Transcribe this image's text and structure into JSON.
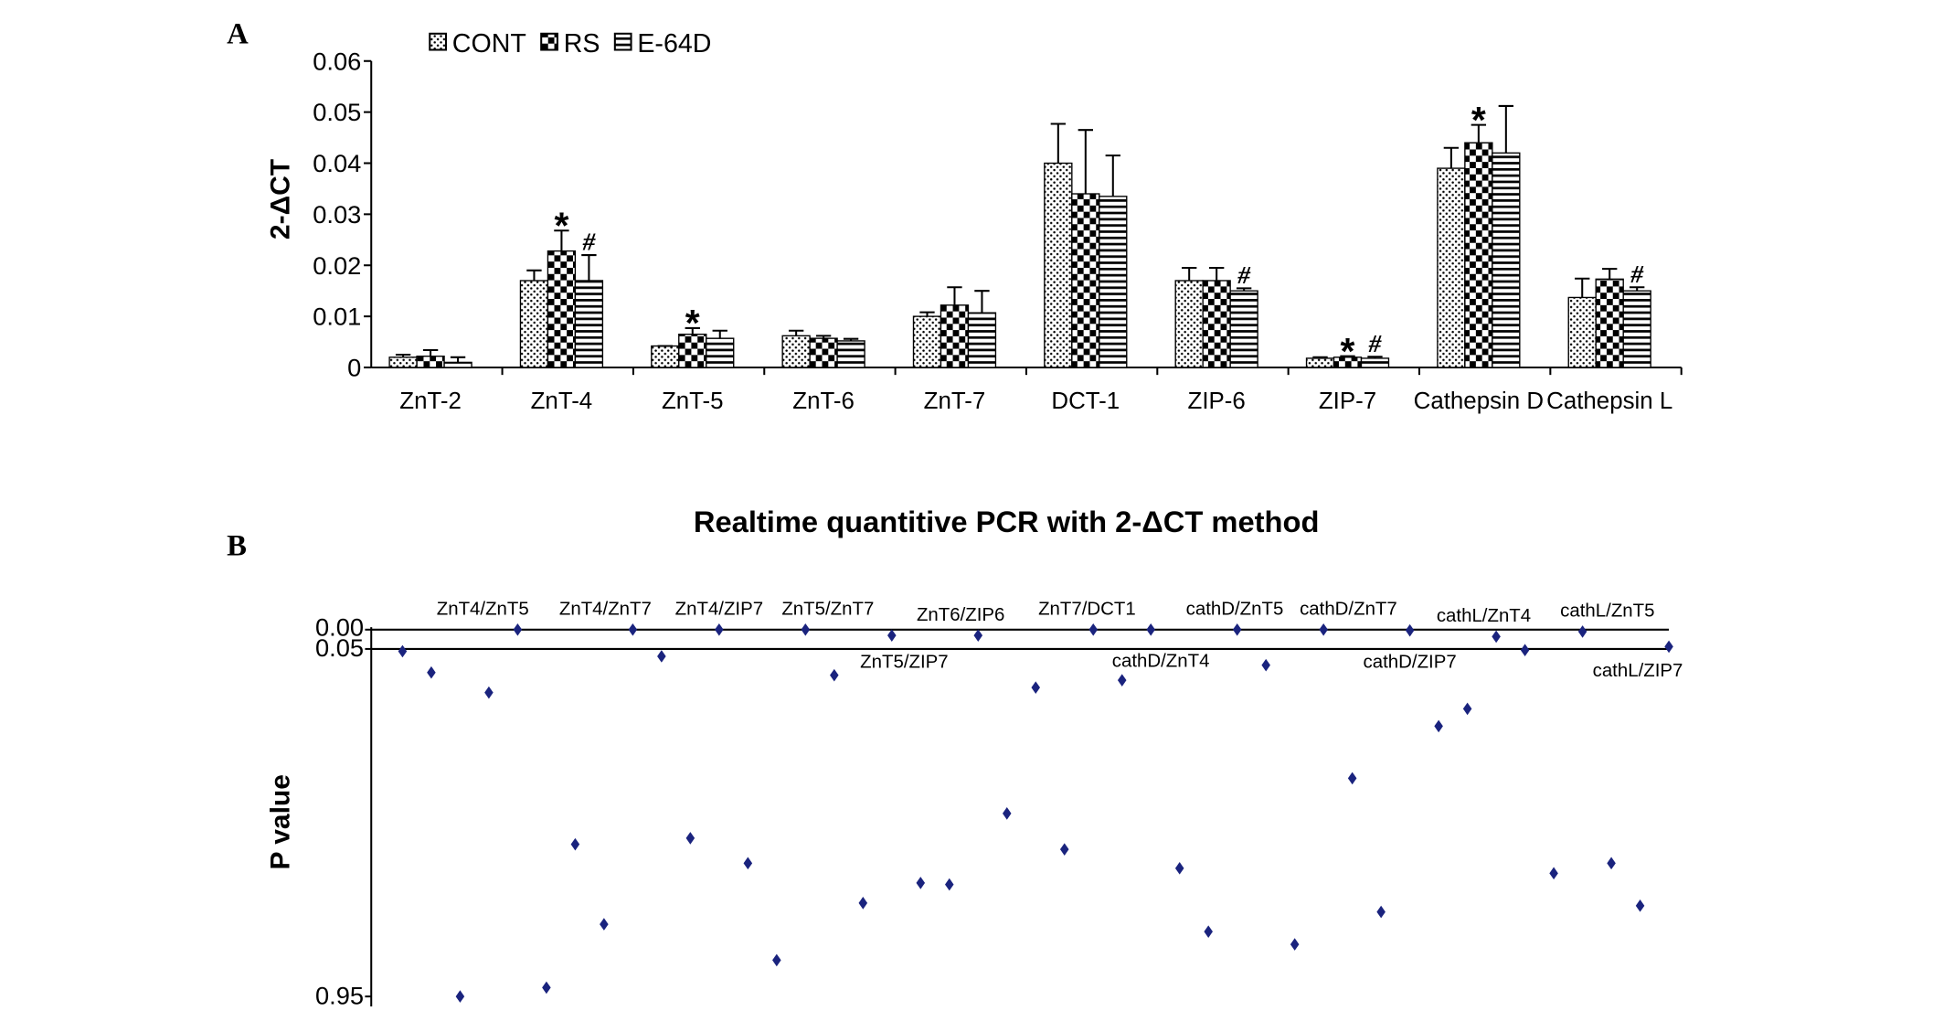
{
  "chart_data": [
    {
      "type": "bar",
      "panel": "A",
      "ylabel": "2-ΔCT",
      "categories": [
        "ZnT-2",
        "ZnT-4",
        "ZnT-5",
        "ZnT-6",
        "ZnT-7",
        "DCT-1",
        "ZIP-6",
        "ZIP-7",
        "Cathepsin D",
        "Cathepsin L"
      ],
      "series": [
        {
          "name": "CONT",
          "pattern": "dots",
          "color": "#000000",
          "values": [
            0.002,
            0.017,
            0.0042,
            0.0062,
            0.01,
            0.04,
            0.017,
            0.0018,
            0.039,
            0.0137
          ],
          "errors": [
            0.0005,
            0.002,
            0,
            0.001,
            0.0008,
            0.0077,
            0.0025,
            0.0002,
            0.004,
            0.0037
          ]
        },
        {
          "name": "RS",
          "pattern": "checker",
          "color": "#000000",
          "values": [
            0.0022,
            0.0228,
            0.0065,
            0.0057,
            0.0122,
            0.034,
            0.017,
            0.002,
            0.044,
            0.0173
          ],
          "errors": [
            0.0012,
            0.004,
            0.0012,
            0.0005,
            0.0035,
            0.0125,
            0.0025,
            0.0002,
            0.0035,
            0.002
          ]
        },
        {
          "name": "E-64D",
          "pattern": "stripes",
          "color": "#000000",
          "values": [
            0.001,
            0.017,
            0.0057,
            0.0052,
            0.0107,
            0.0335,
            0.015,
            0.0018,
            0.042,
            0.015
          ],
          "errors": [
            0.001,
            0.005,
            0.0015,
            0.0004,
            0.0043,
            0.008,
            0.0005,
            0.0003,
            0.0092,
            0.0007
          ]
        }
      ],
      "annotations": [
        {
          "text": "*",
          "category": "ZnT-4",
          "series": "RS"
        },
        {
          "text": "#",
          "category": "ZnT-4",
          "series": "E-64D"
        },
        {
          "text": "*",
          "category": "ZnT-5",
          "series": "RS"
        },
        {
          "text": "#",
          "category": "ZIP-6",
          "series": "E-64D"
        },
        {
          "text": "*",
          "category": "ZIP-7",
          "series": "RS"
        },
        {
          "text": "#",
          "category": "ZIP-7",
          "series": "E-64D"
        },
        {
          "text": "*",
          "category": "Cathepsin D",
          "series": "RS"
        },
        {
          "text": "#",
          "category": "Cathepsin L",
          "series": "E-64D"
        }
      ],
      "ylim": [
        0,
        0.06
      ],
      "yticks": [
        0,
        0.01,
        0.02,
        0.03,
        0.04,
        0.05,
        0.06
      ],
      "legend": "top"
    },
    {
      "type": "scatter",
      "panel": "B",
      "title": "Realtime quantitive PCR with 2-ΔCT method",
      "ylabel": "P value",
      "color": "#1a237e",
      "y_inverted": true,
      "x": [
        1,
        2,
        3,
        4,
        5,
        6,
        7,
        8,
        9,
        10,
        11,
        12,
        13,
        14,
        15,
        16,
        17,
        18,
        19,
        20,
        21,
        22,
        23,
        24,
        25,
        26,
        27,
        28,
        29,
        30,
        31,
        32,
        33,
        34,
        35,
        36,
        37,
        38,
        39,
        40,
        41,
        42,
        43,
        44,
        45
      ],
      "values": [
        0.056,
        0.111,
        0.95,
        0.163,
        0,
        0.927,
        0.556,
        0.763,
        0,
        0.069,
        0.54,
        0,
        0.605,
        0.856,
        0,
        0.118,
        0.708,
        0.015,
        0.656,
        0.66,
        0.015,
        0.476,
        0.15,
        0.569,
        0,
        0.131,
        0,
        0.618,
        0.782,
        0,
        0.092,
        0.815,
        0,
        0.385,
        0.731,
        0.002,
        0.25,
        0.205,
        0.018,
        0.053,
        0.631,
        0.005,
        0.605,
        0.715,
        0.044
      ],
      "annotations": [
        {
          "text": "ZnT4/ZnT5",
          "x": 5
        },
        {
          "text": "ZnT4/ZnT7",
          "x": 9
        },
        {
          "text": "ZnT4/ZIP7",
          "x": 12
        },
        {
          "text": "ZnT5/ZnT7",
          "x": 15
        },
        {
          "text": "ZnT5/ZIP7",
          "x": 18
        },
        {
          "text": "ZnT6/ZIP6",
          "x": 21
        },
        {
          "text": "ZnT7/DCT1",
          "x": 25
        },
        {
          "text": "cathD/ZnT4",
          "x": 27
        },
        {
          "text": "cathD/ZnT5",
          "x": 30
        },
        {
          "text": "cathD/ZnT7",
          "x": 33
        },
        {
          "text": "cathD/ZIP7",
          "x": 36
        },
        {
          "text": "cathL/ZnT4",
          "x": 39
        },
        {
          "text": "cathL/ZnT5",
          "x": 42
        },
        {
          "text": "cathL/ZIP7",
          "x": 45
        }
      ],
      "xlim": [
        0,
        45
      ],
      "ylim": [
        0,
        0.95
      ],
      "yticks": [
        {
          "value": 0,
          "label": "0.00"
        },
        {
          "value": 0.05,
          "label": "0.05"
        },
        {
          "value": 0.95,
          "label": "0.95"
        }
      ]
    }
  ]
}
